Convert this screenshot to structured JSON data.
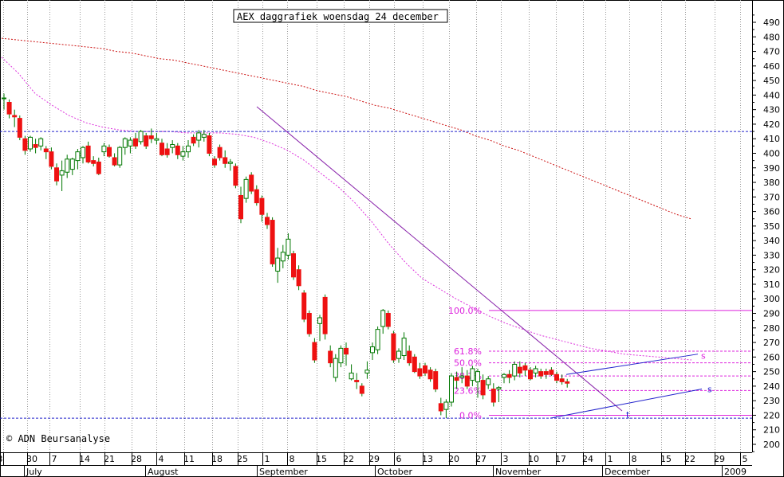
{
  "chart_data": {
    "type": "candlestick",
    "title": "AEX daggrafiek woensdag 24 december",
    "copyright": "© ADN Beursanalyse",
    "ylim": [
      195,
      495
    ],
    "yticks": [
      200,
      210,
      220,
      230,
      240,
      250,
      260,
      270,
      280,
      290,
      300,
      310,
      320,
      330,
      340,
      350,
      360,
      370,
      380,
      390,
      400,
      410,
      420,
      430,
      440,
      450,
      460,
      470,
      480,
      490
    ],
    "x_day_labels": [
      "3",
      "30",
      "7",
      "14",
      "21",
      "28",
      "4",
      "11",
      "18",
      "25",
      "1",
      "8",
      "15",
      "22",
      "29",
      "6",
      "13",
      "20",
      "27",
      "3",
      "10",
      "17",
      "24",
      "1",
      "8",
      "15",
      "22",
      "29",
      "5"
    ],
    "x_month_labels": [
      "July",
      "August",
      "September",
      "October",
      "November",
      "December",
      "2009"
    ],
    "colors": {
      "up": "#ffffff",
      "down": "#ee1111",
      "wick": "#007700",
      "ma_long": "#cc1111",
      "ma_short": "#dd33dd",
      "trend": "#8822aa",
      "hline": "#2222cc",
      "fib": "#dd22dd",
      "grid": "#999999"
    },
    "candles": [
      {
        "o": 438,
        "h": 441,
        "l": 430,
        "c": 438
      },
      {
        "o": 435,
        "h": 437,
        "l": 424,
        "c": 427
      },
      {
        "o": 426,
        "h": 430,
        "l": 418,
        "c": 425
      },
      {
        "o": 424,
        "h": 426,
        "l": 409,
        "c": 411
      },
      {
        "o": 410,
        "h": 412,
        "l": 399,
        "c": 402
      },
      {
        "o": 403,
        "h": 412,
        "l": 401,
        "c": 411
      },
      {
        "o": 406,
        "h": 410,
        "l": 400,
        "c": 404
      },
      {
        "o": 405,
        "h": 411,
        "l": 402,
        "c": 410
      },
      {
        "o": 403,
        "h": 405,
        "l": 396,
        "c": 401
      },
      {
        "o": 401,
        "h": 404,
        "l": 389,
        "c": 391
      },
      {
        "o": 390,
        "h": 393,
        "l": 378,
        "c": 381
      },
      {
        "o": 385,
        "h": 395,
        "l": 374,
        "c": 388
      },
      {
        "o": 387,
        "h": 399,
        "l": 383,
        "c": 396
      },
      {
        "o": 389,
        "h": 397,
        "l": 385,
        "c": 396
      },
      {
        "o": 395,
        "h": 403,
        "l": 389,
        "c": 401
      },
      {
        "o": 397,
        "h": 405,
        "l": 393,
        "c": 404
      },
      {
        "o": 405,
        "h": 408,
        "l": 393,
        "c": 394
      },
      {
        "o": 395,
        "h": 398,
        "l": 391,
        "c": 393
      },
      {
        "o": 394,
        "h": 397,
        "l": 385,
        "c": 386
      },
      {
        "o": 401,
        "h": 407,
        "l": 398,
        "c": 405
      },
      {
        "o": 404,
        "h": 406,
        "l": 397,
        "c": 398
      },
      {
        "o": 397,
        "h": 400,
        "l": 391,
        "c": 392
      },
      {
        "o": 392,
        "h": 405,
        "l": 390,
        "c": 404
      },
      {
        "o": 404,
        "h": 411,
        "l": 399,
        "c": 410
      },
      {
        "o": 405,
        "h": 411,
        "l": 400,
        "c": 409
      },
      {
        "o": 410,
        "h": 414,
        "l": 403,
        "c": 405
      },
      {
        "o": 408,
        "h": 416,
        "l": 406,
        "c": 415
      },
      {
        "o": 412,
        "h": 414,
        "l": 403,
        "c": 405
      },
      {
        "o": 412,
        "h": 417,
        "l": 407,
        "c": 410
      },
      {
        "o": 409,
        "h": 414,
        "l": 406,
        "c": 410
      },
      {
        "o": 407,
        "h": 410,
        "l": 398,
        "c": 399
      },
      {
        "o": 403,
        "h": 407,
        "l": 397,
        "c": 399
      },
      {
        "o": 404,
        "h": 409,
        "l": 400,
        "c": 406
      },
      {
        "o": 405,
        "h": 407,
        "l": 396,
        "c": 399
      },
      {
        "o": 398,
        "h": 405,
        "l": 395,
        "c": 401
      },
      {
        "o": 401,
        "h": 409,
        "l": 397,
        "c": 405
      },
      {
        "o": 411,
        "h": 413,
        "l": 405,
        "c": 407
      },
      {
        "o": 409,
        "h": 416,
        "l": 404,
        "c": 414
      },
      {
        "o": 411,
        "h": 416,
        "l": 408,
        "c": 413
      },
      {
        "o": 412,
        "h": 414,
        "l": 398,
        "c": 400
      },
      {
        "o": 396,
        "h": 398,
        "l": 390,
        "c": 392
      },
      {
        "o": 404,
        "h": 406,
        "l": 395,
        "c": 397
      },
      {
        "o": 397,
        "h": 402,
        "l": 390,
        "c": 393
      },
      {
        "o": 393,
        "h": 396,
        "l": 388,
        "c": 394
      },
      {
        "o": 391,
        "h": 393,
        "l": 376,
        "c": 378
      },
      {
        "o": 371,
        "h": 377,
        "l": 352,
        "c": 355
      },
      {
        "o": 369,
        "h": 384,
        "l": 366,
        "c": 382
      },
      {
        "o": 385,
        "h": 387,
        "l": 372,
        "c": 374
      },
      {
        "o": 375,
        "h": 378,
        "l": 364,
        "c": 366
      },
      {
        "o": 369,
        "h": 371,
        "l": 353,
        "c": 358
      },
      {
        "o": 356,
        "h": 359,
        "l": 348,
        "c": 351
      },
      {
        "o": 354,
        "h": 356,
        "l": 322,
        "c": 324
      },
      {
        "o": 319,
        "h": 335,
        "l": 311,
        "c": 328
      },
      {
        "o": 326,
        "h": 337,
        "l": 321,
        "c": 332
      },
      {
        "o": 330,
        "h": 345,
        "l": 327,
        "c": 341
      },
      {
        "o": 331,
        "h": 333,
        "l": 313,
        "c": 315
      },
      {
        "o": 320,
        "h": 323,
        "l": 306,
        "c": 309
      },
      {
        "o": 304,
        "h": 306,
        "l": 284,
        "c": 286
      },
      {
        "o": 290,
        "h": 292,
        "l": 274,
        "c": 276
      },
      {
        "o": 270,
        "h": 273,
        "l": 256,
        "c": 258
      },
      {
        "o": 283,
        "h": 289,
        "l": 271,
        "c": 287
      },
      {
        "o": 301,
        "h": 303,
        "l": 272,
        "c": 276
      },
      {
        "o": 264,
        "h": 268,
        "l": 253,
        "c": 256
      },
      {
        "o": 246,
        "h": 262,
        "l": 243,
        "c": 259
      },
      {
        "o": 256,
        "h": 268,
        "l": 253,
        "c": 266
      },
      {
        "o": 266,
        "h": 270,
        "l": 254,
        "c": 262
      },
      {
        "o": 245,
        "h": 255,
        "l": 244,
        "c": 249
      },
      {
        "o": 244,
        "h": 249,
        "l": 238,
        "c": 243
      },
      {
        "o": 240,
        "h": 242,
        "l": 233,
        "c": 235
      },
      {
        "o": 249,
        "h": 257,
        "l": 245,
        "c": 251
      },
      {
        "o": 263,
        "h": 270,
        "l": 258,
        "c": 267
      },
      {
        "o": 265,
        "h": 281,
        "l": 262,
        "c": 279
      },
      {
        "o": 281,
        "h": 293,
        "l": 276,
        "c": 292
      },
      {
        "o": 290,
        "h": 292,
        "l": 279,
        "c": 281
      },
      {
        "o": 276,
        "h": 278,
        "l": 256,
        "c": 258
      },
      {
        "o": 259,
        "h": 266,
        "l": 256,
        "c": 264
      },
      {
        "o": 261,
        "h": 277,
        "l": 258,
        "c": 273
      },
      {
        "o": 264,
        "h": 268,
        "l": 254,
        "c": 256
      },
      {
        "o": 260,
        "h": 262,
        "l": 249,
        "c": 250
      },
      {
        "o": 252,
        "h": 256,
        "l": 245,
        "c": 247
      },
      {
        "o": 254,
        "h": 256,
        "l": 247,
        "c": 249
      },
      {
        "o": 251,
        "h": 253,
        "l": 243,
        "c": 245
      },
      {
        "o": 250,
        "h": 252,
        "l": 236,
        "c": 238
      },
      {
        "o": 228,
        "h": 232,
        "l": 220,
        "c": 223
      },
      {
        "o": 224,
        "h": 231,
        "l": 218,
        "c": 229
      },
      {
        "o": 229,
        "h": 249,
        "l": 226,
        "c": 247
      },
      {
        "o": 246,
        "h": 250,
        "l": 238,
        "c": 244
      },
      {
        "o": 246,
        "h": 253,
        "l": 242,
        "c": 247
      },
      {
        "o": 247,
        "h": 251,
        "l": 238,
        "c": 240
      },
      {
        "o": 244,
        "h": 254,
        "l": 240,
        "c": 252
      },
      {
        "o": 243,
        "h": 252,
        "l": 232,
        "c": 250
      },
      {
        "o": 244,
        "h": 248,
        "l": 231,
        "c": 234
      },
      {
        "o": 241,
        "h": 247,
        "l": 238,
        "c": 245
      },
      {
        "o": 238,
        "h": 242,
        "l": 226,
        "c": 229
      },
      {
        "o": 238,
        "h": 240,
        "l": 229,
        "c": 239
      },
      {
        "o": 246,
        "h": 249,
        "l": 242,
        "c": 248
      },
      {
        "o": 248,
        "h": 251,
        "l": 242,
        "c": 246
      },
      {
        "o": 247,
        "h": 257,
        "l": 244,
        "c": 255
      },
      {
        "o": 253,
        "h": 257,
        "l": 246,
        "c": 249
      },
      {
        "o": 254,
        "h": 256,
        "l": 247,
        "c": 251
      },
      {
        "o": 251,
        "h": 253,
        "l": 244,
        "c": 245
      },
      {
        "o": 249,
        "h": 254,
        "l": 246,
        "c": 252
      },
      {
        "o": 250,
        "h": 252,
        "l": 245,
        "c": 247
      },
      {
        "o": 250,
        "h": 252,
        "l": 245,
        "c": 248
      },
      {
        "o": 251,
        "h": 253,
        "l": 247,
        "c": 248
      },
      {
        "o": 248,
        "h": 250,
        "l": 242,
        "c": 244
      },
      {
        "o": 245,
        "h": 248,
        "l": 241,
        "c": 243
      },
      {
        "o": 243,
        "h": 245,
        "l": 239,
        "c": 242
      }
    ],
    "ma_long": [
      479,
      478,
      477,
      476,
      475,
      474,
      473,
      472,
      470,
      469,
      467,
      465,
      464,
      462,
      460,
      458,
      456,
      454,
      452,
      450,
      448,
      446,
      443,
      441,
      439,
      436,
      433,
      431,
      428,
      425,
      422,
      419,
      416,
      412,
      409,
      405,
      402,
      398,
      394,
      390,
      386,
      382,
      378,
      374,
      370,
      366,
      362,
      358,
      355
    ],
    "ma_short": [
      466,
      455,
      441,
      433,
      426,
      421,
      418,
      416,
      415,
      415,
      415,
      414,
      414,
      414,
      413,
      411,
      407,
      402,
      395,
      386,
      377,
      366,
      353,
      338,
      325,
      314,
      307,
      300,
      294,
      288,
      283,
      279,
      275,
      272,
      269,
      266,
      264,
      262,
      261,
      260,
      259,
      258
    ],
    "fibonacci": [
      {
        "label": "100.0%",
        "value": 292
      },
      {
        "label": "61.8%",
        "value": 264
      },
      {
        "label": "50.0%",
        "value": 256
      },
      {
        "label": "38.2%",
        "value": 247
      },
      {
        "label": "23.6%",
        "value": 237
      },
      {
        "label": "0.0%",
        "value": 220
      }
    ],
    "horizontal_lines": [
      415,
      218
    ],
    "annotations": {
      "s_upper": "s",
      "s_lower": "s",
      "t": "t"
    }
  }
}
